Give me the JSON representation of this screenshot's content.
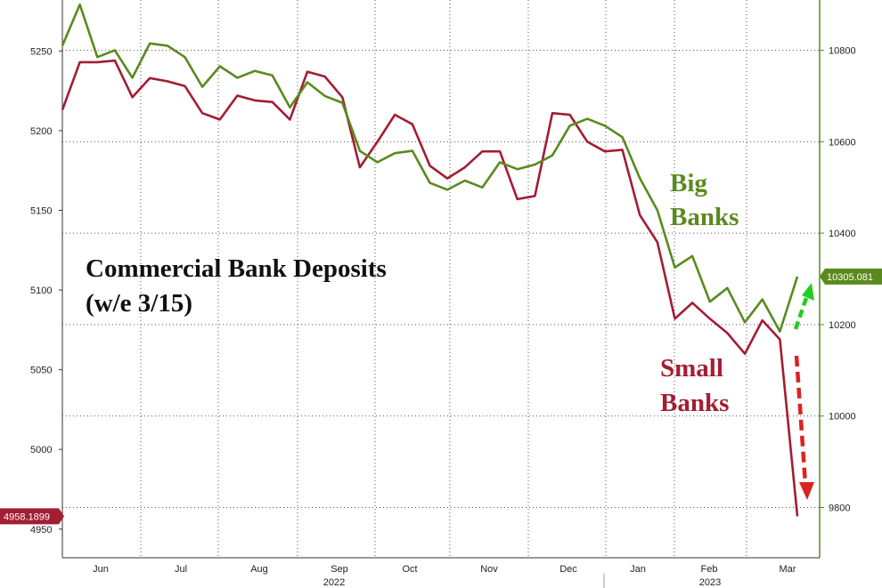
{
  "chart_data": {
    "type": "line",
    "title": "Commercial Bank Deposits",
    "subtitle": "(w/e 3/15)",
    "x_labels": [
      "Jun",
      "Jul",
      "Aug",
      "Sep",
      "Oct",
      "Nov",
      "Dec",
      "Jan",
      "Feb",
      "Mar"
    ],
    "year_labels": [
      "2022",
      "2023"
    ],
    "left_axis": {
      "ticks": [
        4950,
        5000,
        5050,
        5100,
        5150,
        5200,
        5250
      ],
      "ylim": [
        4932,
        5282
      ]
    },
    "right_axis": {
      "ticks": [
        9800,
        10000,
        10200,
        10400,
        10600,
        10800
      ],
      "ylim": [
        9690,
        10910
      ]
    },
    "grid": true,
    "series": [
      {
        "name": "Small Banks",
        "axis": "left",
        "color": "#a31d33",
        "last_value_label": "4958.1899",
        "values": [
          5213,
          5243,
          5243,
          5244,
          5221,
          5233,
          5231,
          5228,
          5211,
          5207,
          5222,
          5219,
          5218,
          5207,
          5237,
          5234,
          5221,
          5177,
          5193,
          5210,
          5204,
          5178,
          5170,
          5177,
          5187,
          5187,
          5157,
          5159,
          5211,
          5210,
          5193,
          5187,
          5188,
          5147,
          5130,
          5082,
          5092,
          5082,
          5073,
          5060,
          5081,
          5069,
          4958
        ]
      },
      {
        "name": "Big Banks",
        "axis": "right",
        "color": "#5a8a1e",
        "last_value_label": "10305.081",
        "values": [
          10810,
          10900,
          10785,
          10800,
          10740,
          10815,
          10810,
          10785,
          10720,
          10765,
          10740,
          10755,
          10745,
          10675,
          10730,
          10700,
          10685,
          10580,
          10555,
          10575,
          10580,
          10510,
          10495,
          10515,
          10500,
          10555,
          10540,
          10550,
          10570,
          10635,
          10650,
          10635,
          10610,
          10520,
          10450,
          10325,
          10350,
          10250,
          10280,
          10205,
          10255,
          10185,
          10305
        ]
      }
    ],
    "annotations": [
      {
        "text": "Big",
        "color": "#5a8a1e"
      },
      {
        "text": "Banks",
        "color": "#5a8a1e"
      },
      {
        "text": "Small",
        "color": "#a31d33"
      },
      {
        "text": "Banks",
        "color": "#a31d33"
      }
    ],
    "arrow_colors": {
      "up": "#22cc22",
      "down": "#dd2222"
    }
  }
}
